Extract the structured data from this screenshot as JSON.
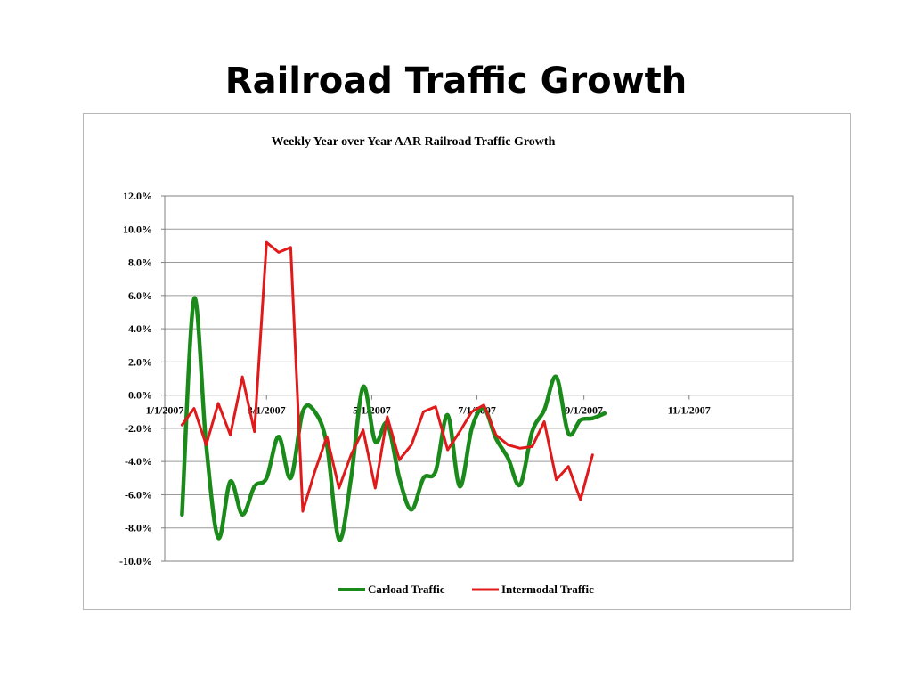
{
  "slide": {
    "title": "Railroad Traffic Growth"
  },
  "chart_data": {
    "type": "line",
    "title": "Weekly Year over Year AAR Railroad Traffic Growth",
    "xlabel": "",
    "ylabel": "",
    "x_axis": {
      "type": "date",
      "range": [
        "2007-01-01",
        "2007-12-31"
      ],
      "ticks": [
        {
          "date": "2007-01-01",
          "label": "1/1/2007"
        },
        {
          "date": "2007-03-01",
          "label": "3/1/2007"
        },
        {
          "date": "2007-05-01",
          "label": "5/1/2007"
        },
        {
          "date": "2007-07-01",
          "label": "7/1/2007"
        },
        {
          "date": "2007-09-01",
          "label": "9/1/2007"
        },
        {
          "date": "2007-11-01",
          "label": "11/1/2007"
        }
      ]
    },
    "y_axis": {
      "range": [
        -10,
        12
      ],
      "ticks": [
        12,
        10,
        8,
        6,
        4,
        2,
        0,
        -2,
        -4,
        -6,
        -8,
        -10
      ],
      "tick_labels": [
        "12.0%",
        "10.0%",
        "8.0%",
        "6.0%",
        "4.0%",
        "2.0%",
        "0.0%",
        "-2.0%",
        "-4.0%",
        "-6.0%",
        "-8.0%",
        "-10.0%"
      ]
    },
    "grid": true,
    "legend_position": "bottom",
    "series": [
      {
        "name": "Carload Traffic",
        "color": "#1a8a1a",
        "smooth": true,
        "points": [
          [
            "2007-01-11",
            -7.2
          ],
          [
            "2007-01-18",
            5.8
          ],
          [
            "2007-01-25",
            -3.0
          ],
          [
            "2007-02-01",
            -8.6
          ],
          [
            "2007-02-08",
            -5.2
          ],
          [
            "2007-02-15",
            -7.2
          ],
          [
            "2007-02-22",
            -5.5
          ],
          [
            "2007-03-01",
            -5.0
          ],
          [
            "2007-03-08",
            -2.5
          ],
          [
            "2007-03-15",
            -5.0
          ],
          [
            "2007-03-22",
            -1.0
          ],
          [
            "2007-03-29",
            -1.0
          ],
          [
            "2007-04-05",
            -3.0
          ],
          [
            "2007-04-12",
            -8.7
          ],
          [
            "2007-04-19",
            -5.0
          ],
          [
            "2007-04-26",
            0.5
          ],
          [
            "2007-05-03",
            -2.8
          ],
          [
            "2007-05-10",
            -1.7
          ],
          [
            "2007-05-17",
            -5.0
          ],
          [
            "2007-05-24",
            -6.9
          ],
          [
            "2007-05-31",
            -5.0
          ],
          [
            "2007-06-07",
            -4.6
          ],
          [
            "2007-06-14",
            -1.2
          ],
          [
            "2007-06-21",
            -5.5
          ],
          [
            "2007-06-28",
            -2.0
          ],
          [
            "2007-07-05",
            -0.8
          ],
          [
            "2007-07-12",
            -2.6
          ],
          [
            "2007-07-19",
            -3.8
          ],
          [
            "2007-07-26",
            -5.4
          ],
          [
            "2007-08-02",
            -2.2
          ],
          [
            "2007-08-09",
            -0.9
          ],
          [
            "2007-08-16",
            1.1
          ],
          [
            "2007-08-23",
            -2.3
          ],
          [
            "2007-08-30",
            -1.5
          ],
          [
            "2007-09-06",
            -1.4
          ],
          [
            "2007-09-13",
            -1.1
          ]
        ]
      },
      {
        "name": "Intermodal Traffic",
        "color": "#e01a1a",
        "smooth": false,
        "points": [
          [
            "2007-01-11",
            -1.8
          ],
          [
            "2007-01-18",
            -0.8
          ],
          [
            "2007-01-25",
            -3.0
          ],
          [
            "2007-02-01",
            -0.5
          ],
          [
            "2007-02-08",
            -2.4
          ],
          [
            "2007-02-15",
            1.1
          ],
          [
            "2007-02-22",
            -2.2
          ],
          [
            "2007-03-01",
            9.2
          ],
          [
            "2007-03-08",
            8.6
          ],
          [
            "2007-03-15",
            8.9
          ],
          [
            "2007-03-22",
            -7.0
          ],
          [
            "2007-03-29",
            -4.6
          ],
          [
            "2007-04-05",
            -2.5
          ],
          [
            "2007-04-12",
            -5.6
          ],
          [
            "2007-04-19",
            -3.6
          ],
          [
            "2007-04-26",
            -2.1
          ],
          [
            "2007-05-03",
            -5.6
          ],
          [
            "2007-05-10",
            -1.3
          ],
          [
            "2007-05-17",
            -3.9
          ],
          [
            "2007-05-24",
            -3.0
          ],
          [
            "2007-05-31",
            -1.0
          ],
          [
            "2007-06-07",
            -0.7
          ],
          [
            "2007-06-14",
            -3.3
          ],
          [
            "2007-06-21",
            -2.2
          ],
          [
            "2007-06-28",
            -1.0
          ],
          [
            "2007-07-05",
            -0.6
          ],
          [
            "2007-07-12",
            -2.4
          ],
          [
            "2007-07-19",
            -3.0
          ],
          [
            "2007-07-26",
            -3.2
          ],
          [
            "2007-08-02",
            -3.1
          ],
          [
            "2007-08-09",
            -1.6
          ],
          [
            "2007-08-16",
            -5.1
          ],
          [
            "2007-08-23",
            -4.3
          ],
          [
            "2007-08-30",
            -6.3
          ],
          [
            "2007-09-06",
            -3.6
          ]
        ]
      }
    ]
  }
}
